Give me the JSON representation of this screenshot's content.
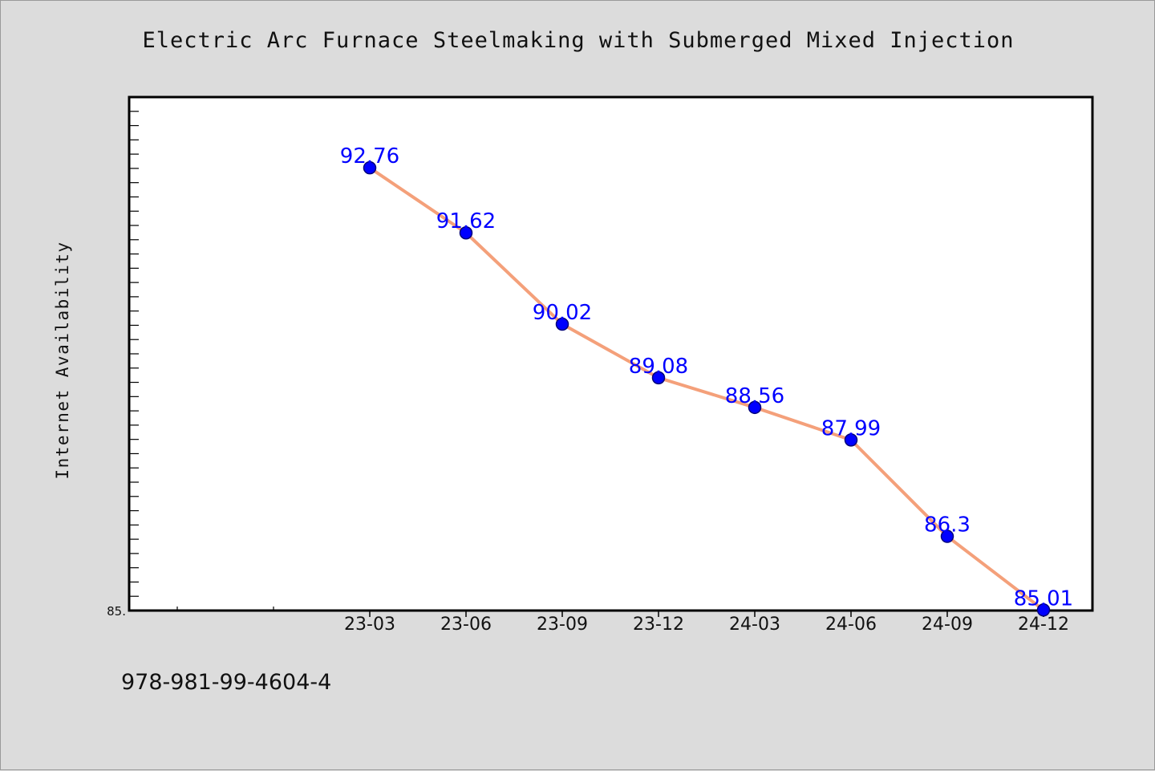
{
  "chart_data": {
    "type": "line",
    "title": "Electric Arc Furnace Steelmaking with Submerged Mixed Injection",
    "xlabel": "",
    "ylabel": "Internet Availability",
    "categories": [
      "23-03",
      "23-06",
      "23-09",
      "23-12",
      "24-03",
      "24-06",
      "24-09",
      "24-12"
    ],
    "series": [
      {
        "values": [
          92.76,
          91.62,
          90.02,
          89.08,
          88.56,
          87.99,
          86.3,
          85.01
        ]
      }
    ],
    "data_labels": [
      "92.76",
      "91.62",
      "90.02",
      "89.08",
      "88.56",
      "87.99",
      "86.3",
      "85.01"
    ],
    "ylim": [
      85.0,
      94.0
    ],
    "y_tick_label_min": "85.",
    "grid": false,
    "legend": "none",
    "colors": {
      "line": "#f4a07a",
      "marker": "#0000ff",
      "marker_edge": "#00007a",
      "data_label": "#0000ff",
      "plot_background": "#ffffff",
      "figure_background": "#dcdcdc"
    }
  },
  "footer": {
    "code": "978-981-99-4604-4"
  }
}
